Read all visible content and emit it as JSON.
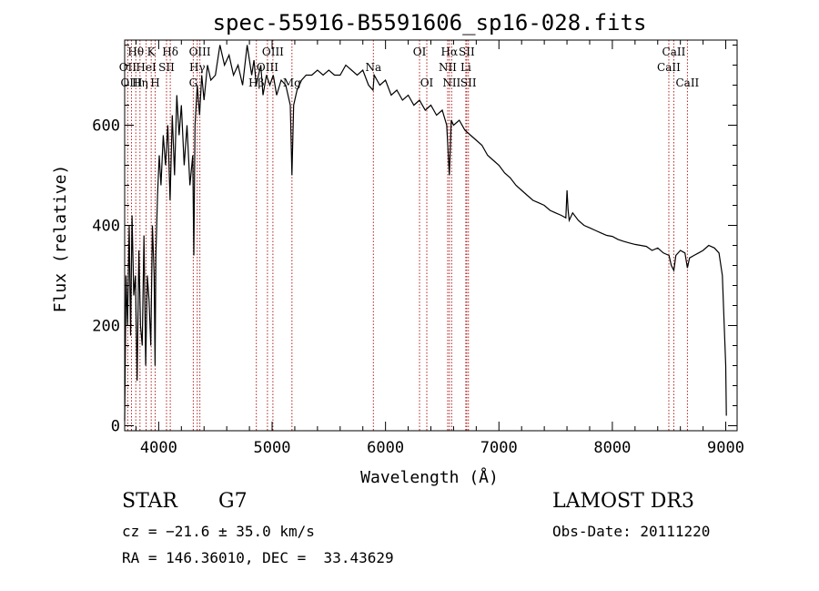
{
  "chart_data": {
    "type": "line",
    "title": "spec-55916-B5591606_sp16-028.fits",
    "xlabel": "Wavelength (Å)",
    "ylabel": "Flux (relative)",
    "xlim": [
      3700,
      9100
    ],
    "ylim": [
      -10,
      770
    ],
    "xticks": [
      4000,
      5000,
      6000,
      7000,
      8000,
      9000
    ],
    "yticks": [
      0,
      200,
      400,
      600
    ],
    "grid": false,
    "series": [
      {
        "name": "spectrum",
        "x": [
          3700,
          3712,
          3725,
          3740,
          3752,
          3765,
          3780,
          3795,
          3810,
          3825,
          3840,
          3855,
          3870,
          3885,
          3900,
          3915,
          3930,
          3945,
          3960,
          3968,
          3975,
          3990,
          4005,
          4020,
          4040,
          4060,
          4080,
          4100,
          4120,
          4140,
          4160,
          4180,
          4200,
          4225,
          4250,
          4275,
          4300,
          4310,
          4320,
          4340,
          4360,
          4380,
          4400,
          4430,
          4460,
          4500,
          4540,
          4580,
          4620,
          4660,
          4700,
          4740,
          4780,
          4820,
          4840,
          4860,
          4880,
          4900,
          4920,
          4950,
          4980,
          5010,
          5040,
          5080,
          5120,
          5160,
          5175,
          5190,
          5220,
          5260,
          5300,
          5350,
          5400,
          5450,
          5500,
          5550,
          5600,
          5650,
          5700,
          5750,
          5800,
          5850,
          5890,
          5900,
          5950,
          6000,
          6050,
          6100,
          6150,
          6200,
          6250,
          6300,
          6350,
          6400,
          6450,
          6500,
          6540,
          6563,
          6580,
          6600,
          6650,
          6700,
          6750,
          6800,
          6850,
          6900,
          6950,
          7000,
          7050,
          7100,
          7150,
          7200,
          7250,
          7300,
          7350,
          7400,
          7450,
          7500,
          7550,
          7590,
          7600,
          7610,
          7620,
          7650,
          7700,
          7750,
          7800,
          7850,
          7900,
          7950,
          8000,
          8050,
          8100,
          8150,
          8200,
          8250,
          8300,
          8350,
          8400,
          8450,
          8500,
          8520,
          8542,
          8560,
          8600,
          8640,
          8662,
          8680,
          8720,
          8760,
          8800,
          8850,
          8900,
          8940,
          8970,
          9000,
          9005
        ],
        "values": [
          10,
          300,
          200,
          400,
          180,
          420,
          260,
          300,
          90,
          350,
          200,
          160,
          380,
          120,
          300,
          250,
          160,
          400,
          300,
          120,
          340,
          460,
          540,
          480,
          580,
          520,
          600,
          450,
          620,
          500,
          660,
          580,
          640,
          520,
          600,
          480,
          540,
          340,
          600,
          680,
          620,
          700,
          650,
          720,
          690,
          700,
          760,
          720,
          740,
          700,
          720,
          680,
          760,
          700,
          730,
          680,
          700,
          720,
          660,
          700,
          680,
          700,
          660,
          690,
          680,
          640,
          500,
          640,
          670,
          690,
          700,
          700,
          710,
          700,
          710,
          700,
          700,
          720,
          710,
          700,
          710,
          680,
          670,
          700,
          680,
          690,
          660,
          670,
          650,
          660,
          640,
          650,
          630,
          640,
          620,
          630,
          600,
          500,
          610,
          600,
          610,
          590,
          580,
          570,
          560,
          540,
          530,
          520,
          505,
          495,
          480,
          470,
          460,
          450,
          445,
          440,
          430,
          425,
          420,
          415,
          470,
          430,
          410,
          425,
          410,
          400,
          395,
          390,
          385,
          380,
          378,
          372,
          368,
          365,
          362,
          360,
          358,
          350,
          355,
          345,
          340,
          320,
          310,
          340,
          350,
          345,
          315,
          335,
          340,
          345,
          350,
          360,
          355,
          345,
          300,
          120,
          20
        ]
      }
    ],
    "annotations": [
      {
        "label": "Hθ",
        "wave": 3798,
        "row": 1
      },
      {
        "label": "K",
        "wave": 3934,
        "row": 1
      },
      {
        "label": "Hδ",
        "wave": 4102,
        "row": 1
      },
      {
        "label": "OII",
        "wave": 3727,
        "row": 2
      },
      {
        "label": "HeI",
        "wave": 3889,
        "row": 2
      },
      {
        "label": "SII",
        "wave": 4069,
        "row": 2
      },
      {
        "label": "OIII",
        "wave": 3760,
        "row": 3
      },
      {
        "label": "Hη",
        "wave": 3835,
        "row": 3
      },
      {
        "label": "H",
        "wave": 3969,
        "row": 3
      },
      {
        "label": "OIII",
        "wave": 4363,
        "row": 1
      },
      {
        "label": "Hγ",
        "wave": 4340,
        "row": 2
      },
      {
        "label": "G",
        "wave": 4305,
        "row": 3
      },
      {
        "label": "OIII",
        "wave": 5007,
        "row": 1
      },
      {
        "label": "OIII",
        "wave": 4959,
        "row": 2
      },
      {
        "label": "Hβ",
        "wave": 4861,
        "row": 3
      },
      {
        "label": "Mg",
        "wave": 5175,
        "row": 3
      },
      {
        "label": "Na",
        "wave": 5893,
        "row": 2
      },
      {
        "label": "OI",
        "wave": 6300,
        "row": 1
      },
      {
        "label": "OI",
        "wave": 6364,
        "row": 3
      },
      {
        "label": "Hα",
        "wave": 6563,
        "row": 1
      },
      {
        "label": "SII",
        "wave": 6716,
        "row": 1
      },
      {
        "label": "NII",
        "wave": 6548,
        "row": 2
      },
      {
        "label": "Li",
        "wave": 6708,
        "row": 2
      },
      {
        "label": "NII",
        "wave": 6583,
        "row": 3
      },
      {
        "label": "SII",
        "wave": 6731,
        "row": 3
      },
      {
        "label": "CaII",
        "wave": 8542,
        "row": 1
      },
      {
        "label": "CaII",
        "wave": 8498,
        "row": 2
      },
      {
        "label": "CaII",
        "wave": 8662,
        "row": 3
      }
    ]
  },
  "info": {
    "object_class": "STAR",
    "subclass": "G7",
    "survey": "LAMOST DR3",
    "cz": "cz = −21.6 ± 35.0 km/s",
    "obs_date": "Obs-Date: 20111220",
    "coords": "RA = 146.36010, DEC =  33.43629"
  }
}
